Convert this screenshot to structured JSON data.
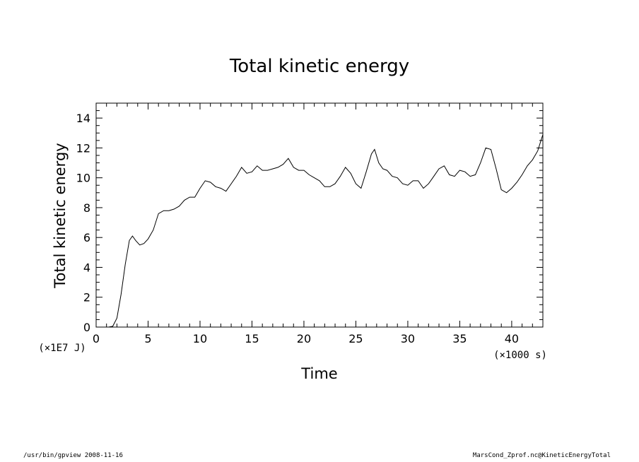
{
  "chart_data": {
    "type": "line",
    "title": "Total kinetic energy",
    "xlabel": "Time",
    "ylabel": "Total kinetic energy",
    "x_unit": "(×1000 s)",
    "y_unit": "(×1E7 J)",
    "xlim": [
      0,
      43
    ],
    "ylim": [
      0,
      15
    ],
    "x_ticks": [
      0,
      5,
      10,
      15,
      20,
      25,
      30,
      35,
      40
    ],
    "y_ticks": [
      0,
      2,
      4,
      6,
      8,
      10,
      12,
      14
    ],
    "grid": false,
    "series": [
      {
        "x": [
          0,
          1.2,
          1.6,
          2.0,
          2.4,
          2.8,
          3.2,
          3.5,
          3.8,
          4.2,
          4.6,
          5.0,
          5.5,
          6.0,
          6.5,
          7.0,
          7.5,
          8.0,
          8.5,
          9.0,
          9.5,
          10.0,
          10.5,
          11.0,
          11.5,
          12.0,
          12.5,
          13.0,
          13.5,
          14.0,
          14.5,
          15.0,
          15.5,
          16.0,
          16.5,
          17.0,
          17.5,
          18.0,
          18.5,
          19.0,
          19.5,
          20.0,
          20.5,
          21.0,
          21.5,
          22.0,
          22.5,
          23.0,
          23.5,
          24.0,
          24.5,
          25.0,
          25.5,
          26.0,
          26.5,
          26.8,
          27.2,
          27.6,
          28.0,
          28.5,
          29.0,
          29.5,
          30.0,
          30.5,
          31.0,
          31.5,
          32.0,
          32.5,
          33.0,
          33.5,
          34.0,
          34.5,
          35.0,
          35.5,
          36.0,
          36.5,
          37.0,
          37.5,
          38.0,
          38.5,
          39.0,
          39.5,
          40.0,
          40.5,
          41.0,
          41.5,
          42.0,
          42.5,
          43.0
        ],
        "y": [
          0,
          0,
          0.05,
          0.6,
          2.2,
          4.2,
          5.8,
          6.1,
          5.8,
          5.5,
          5.6,
          5.9,
          6.5,
          7.6,
          7.8,
          7.8,
          7.9,
          8.1,
          8.5,
          8.7,
          8.7,
          9.3,
          9.8,
          9.7,
          9.4,
          9.3,
          9.1,
          9.6,
          10.1,
          10.7,
          10.3,
          10.4,
          10.8,
          10.5,
          10.5,
          10.6,
          10.7,
          10.9,
          11.3,
          10.7,
          10.5,
          10.5,
          10.2,
          10.0,
          9.8,
          9.4,
          9.4,
          9.6,
          10.1,
          10.7,
          10.3,
          9.6,
          9.3,
          10.4,
          11.6,
          11.9,
          11.0,
          10.6,
          10.5,
          10.1,
          10.0,
          9.6,
          9.5,
          9.8,
          9.8,
          9.3,
          9.6,
          10.1,
          10.6,
          10.8,
          10.2,
          10.1,
          10.5,
          10.4,
          10.1,
          10.2,
          11.0,
          12.0,
          11.9,
          10.6,
          9.2,
          9.0,
          9.3,
          9.7,
          10.2,
          10.8,
          11.2,
          11.8,
          12.9
        ]
      }
    ]
  },
  "footer": {
    "left": "/usr/bin/gpview  2008-11-16",
    "right": "MarsCond_Zprof.nc@KineticEnergyTotal"
  }
}
